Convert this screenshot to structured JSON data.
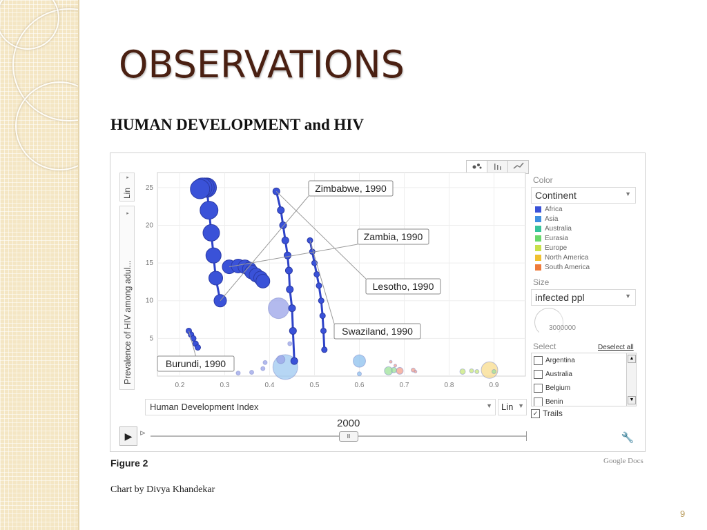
{
  "slide": {
    "title": "OBSERVATIONS",
    "page_number": "9"
  },
  "heading": "HUMAN DEVELOPMENT and HIV",
  "figure_label": "Figure 2",
  "credit": "Chart by Divya Khandekar",
  "watermark": "Google Docs",
  "controls": {
    "y_scale": "Lin",
    "y_indicator": "Prevalence of HIV among adul...",
    "x_indicator": "Human Development Index",
    "x_scale": "Lin",
    "year": "2000",
    "pause_symbol": "II",
    "play_symbol": "▶",
    "speed_symbol": "⊳",
    "wrench_symbol": "🔧"
  },
  "sidebar": {
    "color_label": "Color",
    "color_value": "Continent",
    "legend": [
      {
        "label": "Africa",
        "color": "#3a52d8"
      },
      {
        "label": "Asia",
        "color": "#3e8fe0"
      },
      {
        "label": "Australia",
        "color": "#36c49a"
      },
      {
        "label": "Eurasia",
        "color": "#6ad86a"
      },
      {
        "label": "Europe",
        "color": "#c9e04a"
      },
      {
        "label": "North America",
        "color": "#f0c030"
      },
      {
        "label": "South America",
        "color": "#ee7a3a"
      }
    ],
    "size_label": "Size",
    "size_value": "infected ppl",
    "size_scale_value": "3000000",
    "select_label": "Select",
    "deselect_label": "Deselect all",
    "countries": [
      "Argentina",
      "Australia",
      "Belgium",
      "Benin"
    ],
    "trails_label": "Trails"
  },
  "chart_data": {
    "type": "scatter",
    "xlabel": "Human Development Index",
    "ylabel": "Prevalence of HIV among adul...",
    "xlim": [
      0.15,
      0.97
    ],
    "ylim": [
      0,
      27
    ],
    "x_ticks": [
      "0.2",
      "0.3",
      "0.4",
      "0.5",
      "0.6",
      "0.7",
      "0.8",
      "0.9"
    ],
    "y_ticks": [
      "5",
      "10",
      "15",
      "20",
      "25"
    ],
    "grid": true,
    "year": "2000",
    "trails": [
      {
        "name": "Zimbabwe",
        "color": "#3a52d8",
        "points": [
          {
            "x": 0.29,
            "y": 10,
            "r": 9
          },
          {
            "x": 0.28,
            "y": 13,
            "r": 10
          },
          {
            "x": 0.275,
            "y": 16,
            "r": 11
          },
          {
            "x": 0.27,
            "y": 19,
            "r": 12
          },
          {
            "x": 0.265,
            "y": 22,
            "r": 13
          },
          {
            "x": 0.26,
            "y": 25,
            "r": 14
          },
          {
            "x": 0.255,
            "y": 25,
            "r": 14
          },
          {
            "x": 0.25,
            "y": 25,
            "r": 14
          },
          {
            "x": 0.245,
            "y": 24.8,
            "r": 14
          }
        ]
      },
      {
        "name": "Zambia",
        "color": "#3a52d8",
        "points": [
          {
            "x": 0.31,
            "y": 14.5,
            "r": 10
          },
          {
            "x": 0.33,
            "y": 14.6,
            "r": 10
          },
          {
            "x": 0.345,
            "y": 14.5,
            "r": 10
          },
          {
            "x": 0.355,
            "y": 14.2,
            "r": 10
          },
          {
            "x": 0.36,
            "y": 13.8,
            "r": 10
          },
          {
            "x": 0.37,
            "y": 13.4,
            "r": 10
          },
          {
            "x": 0.38,
            "y": 13,
            "r": 10
          },
          {
            "x": 0.385,
            "y": 12.6,
            "r": 10
          }
        ]
      },
      {
        "name": "Lesotho",
        "color": "#3a52d8",
        "points": [
          {
            "x": 0.415,
            "y": 24.5,
            "r": 5
          },
          {
            "x": 0.425,
            "y": 22,
            "r": 5
          },
          {
            "x": 0.43,
            "y": 20,
            "r": 5
          },
          {
            "x": 0.435,
            "y": 18,
            "r": 5
          },
          {
            "x": 0.44,
            "y": 16,
            "r": 5
          },
          {
            "x": 0.443,
            "y": 14,
            "r": 5
          },
          {
            "x": 0.445,
            "y": 11.5,
            "r": 5
          },
          {
            "x": 0.45,
            "y": 9,
            "r": 5
          },
          {
            "x": 0.452,
            "y": 6,
            "r": 5
          },
          {
            "x": 0.455,
            "y": 2,
            "r": 5
          }
        ]
      },
      {
        "name": "Swaziland",
        "color": "#3a52d8",
        "points": [
          {
            "x": 0.49,
            "y": 18,
            "r": 4
          },
          {
            "x": 0.495,
            "y": 16.5,
            "r": 4
          },
          {
            "x": 0.5,
            "y": 15,
            "r": 4
          },
          {
            "x": 0.505,
            "y": 13.5,
            "r": 4
          },
          {
            "x": 0.51,
            "y": 12,
            "r": 4
          },
          {
            "x": 0.515,
            "y": 10,
            "r": 4
          },
          {
            "x": 0.518,
            "y": 8,
            "r": 4
          },
          {
            "x": 0.52,
            "y": 6,
            "r": 4
          },
          {
            "x": 0.522,
            "y": 3.5,
            "r": 4
          }
        ]
      },
      {
        "name": "Burundi",
        "color": "#3a52d8",
        "points": [
          {
            "x": 0.22,
            "y": 6,
            "r": 4
          },
          {
            "x": 0.225,
            "y": 5.5,
            "r": 4
          },
          {
            "x": 0.23,
            "y": 5,
            "r": 4
          },
          {
            "x": 0.235,
            "y": 4.3,
            "r": 4
          },
          {
            "x": 0.24,
            "y": 3.8,
            "r": 4
          }
        ]
      }
    ],
    "bubbles": [
      {
        "x": 0.42,
        "y": 9,
        "r": 15,
        "color": "#9aa3e8"
      },
      {
        "x": 0.435,
        "y": 1.2,
        "r": 18,
        "color": "#9dc8f0"
      },
      {
        "x": 0.425,
        "y": 2.2,
        "r": 6,
        "color": "#9aa3e8"
      },
      {
        "x": 0.445,
        "y": 4.3,
        "r": 3,
        "color": "#9aa3e8"
      },
      {
        "x": 0.6,
        "y": 2,
        "r": 9,
        "color": "#8cc0ee"
      },
      {
        "x": 0.6,
        "y": 0.3,
        "r": 3,
        "color": "#8cc0ee"
      },
      {
        "x": 0.36,
        "y": 0.5,
        "r": 3,
        "color": "#9aa3e8"
      },
      {
        "x": 0.385,
        "y": 1,
        "r": 3,
        "color": "#9aa3e8"
      },
      {
        "x": 0.39,
        "y": 1.8,
        "r": 3,
        "color": "#9aa3e8"
      },
      {
        "x": 0.245,
        "y": 1.2,
        "r": 3,
        "color": "#9aa3e8"
      },
      {
        "x": 0.33,
        "y": 0.4,
        "r": 3,
        "color": "#9aa3e8"
      },
      {
        "x": 0.665,
        "y": 0.7,
        "r": 6,
        "color": "#9ee29a"
      },
      {
        "x": 0.677,
        "y": 0.8,
        "r": 4,
        "color": "#9ee29a"
      },
      {
        "x": 0.69,
        "y": 0.7,
        "r": 5,
        "color": "#f4a08c"
      },
      {
        "x": 0.68,
        "y": 1.4,
        "r": 2,
        "color": "#f4a08c"
      },
      {
        "x": 0.72,
        "y": 0.8,
        "r": 3,
        "color": "#f4a08c"
      },
      {
        "x": 0.725,
        "y": 0.6,
        "r": 2,
        "color": "#f4a08c"
      },
      {
        "x": 0.67,
        "y": 1.9,
        "r": 2,
        "color": "#f4a08c"
      },
      {
        "x": 0.83,
        "y": 0.6,
        "r": 4,
        "color": "#c8e87a"
      },
      {
        "x": 0.85,
        "y": 0.7,
        "r": 3,
        "color": "#c8e87a"
      },
      {
        "x": 0.862,
        "y": 0.6,
        "r": 3,
        "color": "#c8e87a"
      },
      {
        "x": 0.89,
        "y": 0.8,
        "r": 12,
        "color": "#f8dc8e"
      },
      {
        "x": 0.9,
        "y": 0.6,
        "r": 3,
        "color": "#9ee29a"
      }
    ],
    "annotations": [
      {
        "text": "Zimbabwe, 1990",
        "target": "Zimbabwe"
      },
      {
        "text": "Zambia, 1990",
        "target": "Zambia"
      },
      {
        "text": "Lesotho, 1990",
        "target": "Lesotho"
      },
      {
        "text": "Swaziland, 1990",
        "target": "Swaziland"
      },
      {
        "text": "Burundi, 1990",
        "target": "Burundi"
      }
    ]
  }
}
